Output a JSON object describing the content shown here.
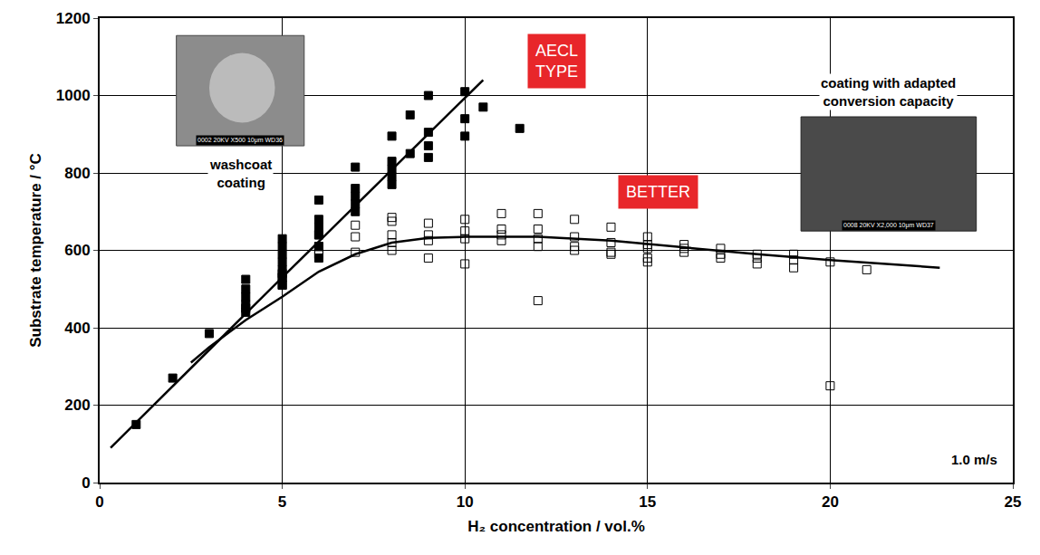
{
  "chart_data": {
    "type": "scatter",
    "xlabel": "H₂ concentration / vol.%",
    "ylabel": "Substrate temperature / °C",
    "xlim": [
      0,
      25
    ],
    "xticks": [
      0,
      5,
      10,
      15,
      20,
      25
    ],
    "ylim": [
      0,
      1200
    ],
    "yticks": [
      0,
      200,
      400,
      600,
      800,
      1000,
      1200
    ],
    "grid": true,
    "annotations": [
      "AECL TYPE",
      "BETTER",
      "1.0 m/s",
      "0002 20KV X500 10μm WD36",
      "0008 20KV X2,000 10μm WD37"
    ],
    "series": [
      {
        "name": "washcoat coating",
        "type": "scatter",
        "marker": "square",
        "color": "#000000",
        "x": [
          1,
          2,
          3,
          4,
          4,
          4,
          4,
          4,
          5,
          5,
          5,
          5,
          5,
          5,
          5,
          6,
          6,
          6,
          6,
          6,
          6,
          7,
          7,
          7,
          7,
          7,
          8,
          8,
          8,
          8,
          8,
          8.5,
          8.5,
          9,
          9,
          9,
          9,
          10,
          10,
          10,
          10.5,
          11.5
        ],
        "values": [
          150,
          270,
          385,
          440,
          460,
          480,
          500,
          525,
          510,
          530,
          550,
          570,
          590,
          610,
          630,
          580,
          610,
          640,
          660,
          680,
          730,
          700,
          720,
          740,
          760,
          815,
          770,
          790,
          810,
          830,
          895,
          850,
          950,
          840,
          870,
          905,
          1000,
          895,
          940,
          1010,
          970,
          915
        ]
      },
      {
        "name": "coating with adapted conversion capacity",
        "type": "scatter",
        "marker": "square-open",
        "color": "#000000",
        "x": [
          4,
          5,
          5,
          5,
          6,
          6,
          6,
          6,
          7,
          7,
          7,
          8,
          8,
          8,
          8,
          8,
          9,
          9,
          9,
          9,
          10,
          10,
          10,
          10,
          11,
          11,
          11,
          11,
          12,
          12,
          12,
          12,
          12,
          13,
          13,
          13,
          13,
          14,
          14,
          14,
          14,
          15,
          15,
          15,
          15,
          15,
          16,
          16,
          16,
          17,
          17,
          17,
          18,
          18,
          18,
          19,
          19,
          19,
          20,
          20,
          21
        ],
        "values": [
          450,
          510,
          530,
          540,
          590,
          600,
          610,
          640,
          595,
          635,
          665,
          600,
          620,
          640,
          675,
          685,
          580,
          625,
          640,
          670,
          565,
          630,
          650,
          680,
          625,
          640,
          655,
          695,
          470,
          610,
          630,
          655,
          695,
          600,
          610,
          635,
          680,
          590,
          595,
          620,
          660,
          570,
          580,
          605,
          615,
          635,
          595,
          605,
          615,
          580,
          590,
          605,
          565,
          580,
          590,
          555,
          575,
          590,
          250,
          570,
          550
        ]
      },
      {
        "type": "line",
        "line_style": "solid",
        "color": "#000000",
        "x": [
          0.3,
          5,
          10.5
        ],
        "values": [
          90,
          530,
          1040
        ]
      },
      {
        "type": "line",
        "line_style": "solid",
        "color": "#000000",
        "x": [
          2.5,
          3,
          4,
          5,
          6,
          7,
          8,
          9,
          10,
          12,
          14,
          16,
          18,
          20,
          23
        ],
        "values": [
          310,
          350,
          420,
          480,
          545,
          590,
          620,
          632,
          635,
          635,
          625,
          608,
          590,
          575,
          555
        ]
      }
    ]
  }
}
